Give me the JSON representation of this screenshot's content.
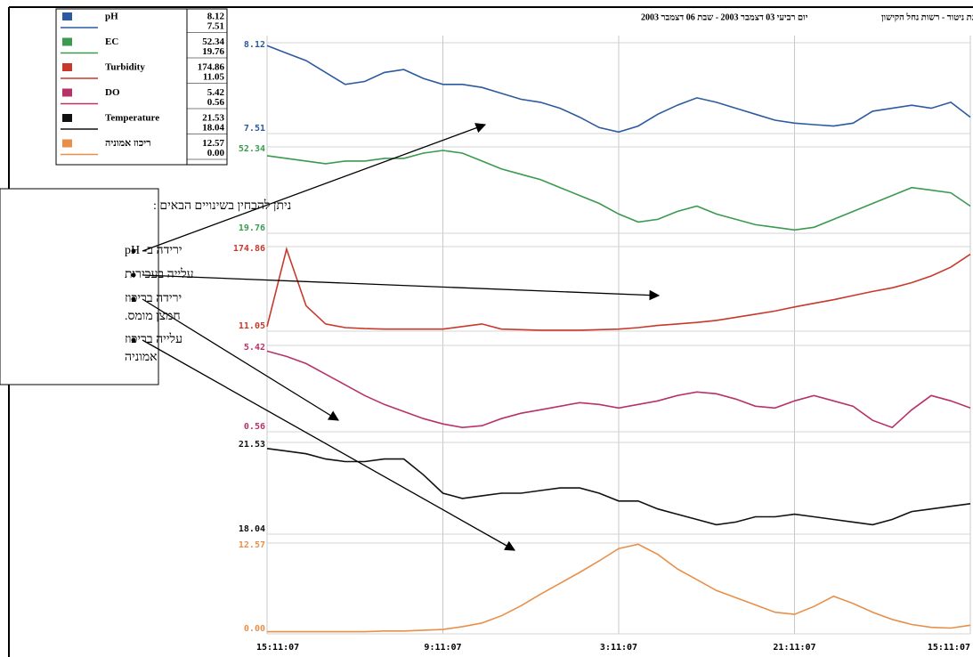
{
  "header": {
    "station": "- - תחנת ניטור - רשות נחל הקישון",
    "dates": "יום רביעי 03 דצמבר 2003 - שבת 06 דצמבר 2003"
  },
  "callout": {
    "heading": "ניתן להבחין בשינויים הבאים :",
    "items": [
      "ירידה ב- pH",
      "עלייה בעכירות",
      "ירידה בריכוז חמצן מומס.",
      "עלייה בריכוז אמוניה"
    ]
  },
  "chart_data": [
    {
      "type": "line",
      "xlim": [
        0,
        72
      ],
      "ylim": [
        7.51,
        8.12
      ],
      "yticks": [
        7.51,
        8.12
      ],
      "x": [
        0,
        2,
        4,
        6,
        8,
        10,
        12,
        14,
        16,
        18,
        20,
        22,
        24,
        26,
        28,
        30,
        32,
        34,
        36,
        38,
        40,
        42,
        44,
        46,
        48,
        50,
        52,
        54,
        56,
        58,
        60,
        62,
        64,
        66,
        68,
        70,
        72
      ],
      "series": [
        {
          "name": "pH",
          "color": "#2c5aa0",
          "values": [
            8.1,
            8.05,
            8.0,
            7.92,
            7.84,
            7.86,
            7.92,
            7.94,
            7.88,
            7.84,
            7.84,
            7.82,
            7.78,
            7.74,
            7.72,
            7.68,
            7.62,
            7.55,
            7.52,
            7.56,
            7.64,
            7.7,
            7.75,
            7.72,
            7.68,
            7.64,
            7.6,
            7.58,
            7.57,
            7.56,
            7.58,
            7.66,
            7.68,
            7.7,
            7.68,
            7.72,
            7.62
          ]
        }
      ]
    },
    {
      "type": "line",
      "xlim": [
        0,
        72
      ],
      "ylim": [
        19.76,
        52.34
      ],
      "yticks": [
        19.76,
        52.34
      ],
      "x": [
        0,
        2,
        4,
        6,
        8,
        10,
        12,
        14,
        16,
        18,
        20,
        22,
        24,
        26,
        28,
        30,
        32,
        34,
        36,
        38,
        40,
        42,
        44,
        46,
        48,
        50,
        52,
        54,
        56,
        58,
        60,
        62,
        64,
        66,
        68,
        70,
        72
      ],
      "series": [
        {
          "name": "EC",
          "color": "#3a9a4f",
          "values": [
            49,
            48,
            47,
            46,
            47,
            47,
            48,
            48,
            50,
            51,
            50,
            47,
            44,
            42,
            40,
            37,
            34,
            31,
            27,
            24,
            25,
            28,
            30,
            27,
            25,
            23,
            22,
            21,
            22,
            25,
            28,
            31,
            34,
            37,
            36,
            35,
            30
          ]
        }
      ]
    },
    {
      "type": "line",
      "xlim": [
        0,
        72
      ],
      "ylim": [
        11.05,
        174.86
      ],
      "yticks": [
        11.05,
        174.86
      ],
      "x": [
        0,
        2,
        4,
        6,
        8,
        10,
        12,
        14,
        16,
        18,
        20,
        22,
        24,
        26,
        28,
        30,
        32,
        34,
        36,
        38,
        40,
        42,
        44,
        46,
        48,
        50,
        52,
        54,
        56,
        58,
        60,
        62,
        64,
        66,
        68,
        70,
        72
      ],
      "series": [
        {
          "name": "Turbidity",
          "color": "#c8392b",
          "values": [
            20,
            170,
            60,
            25,
            18,
            16,
            15,
            15,
            15,
            15,
            20,
            25,
            15,
            14,
            13,
            13,
            13,
            14,
            15,
            18,
            22,
            25,
            28,
            32,
            38,
            44,
            50,
            58,
            65,
            72,
            80,
            88,
            95,
            105,
            118,
            135,
            160
          ]
        }
      ]
    },
    {
      "type": "line",
      "xlim": [
        0,
        72
      ],
      "ylim": [
        0.56,
        5.42
      ],
      "yticks": [
        0.56,
        5.42
      ],
      "x": [
        0,
        2,
        4,
        6,
        8,
        10,
        12,
        14,
        16,
        18,
        20,
        22,
        24,
        26,
        28,
        30,
        32,
        34,
        36,
        38,
        40,
        42,
        44,
        46,
        48,
        50,
        52,
        54,
        56,
        58,
        60,
        62,
        64,
        66,
        68,
        70,
        72
      ],
      "series": [
        {
          "name": "DO",
          "color": "#b8326a",
          "values": [
            5.1,
            4.8,
            4.4,
            3.8,
            3.2,
            2.6,
            2.1,
            1.7,
            1.3,
            1.0,
            0.8,
            0.9,
            1.3,
            1.6,
            1.8,
            2.0,
            2.2,
            2.1,
            1.9,
            2.1,
            2.3,
            2.6,
            2.8,
            2.7,
            2.4,
            2.0,
            1.9,
            2.3,
            2.6,
            2.3,
            2.0,
            1.2,
            0.8,
            1.8,
            2.6,
            2.3,
            1.9
          ]
        }
      ]
    },
    {
      "type": "line",
      "xlim": [
        0,
        72
      ],
      "ylim": [
        18.04,
        21.53
      ],
      "yticks": [
        18.04,
        21.53
      ],
      "x": [
        0,
        2,
        4,
        6,
        8,
        10,
        12,
        14,
        16,
        18,
        20,
        22,
        24,
        26,
        28,
        30,
        32,
        34,
        36,
        38,
        40,
        42,
        44,
        46,
        48,
        50,
        52,
        54,
        56,
        58,
        60,
        62,
        64,
        66,
        68,
        70,
        72
      ],
      "series": [
        {
          "name": "Temperature",
          "color": "#111111",
          "values": [
            21.3,
            21.2,
            21.1,
            20.9,
            20.8,
            20.8,
            20.9,
            20.9,
            20.3,
            19.6,
            19.4,
            19.5,
            19.6,
            19.6,
            19.7,
            19.8,
            19.8,
            19.6,
            19.3,
            19.3,
            19.0,
            18.8,
            18.6,
            18.4,
            18.5,
            18.7,
            18.7,
            18.8,
            18.7,
            18.6,
            18.5,
            18.4,
            18.6,
            18.9,
            19.0,
            19.1,
            19.2
          ]
        }
      ]
    },
    {
      "type": "line",
      "xlim": [
        0,
        72
      ],
      "ylim": [
        0,
        12.57
      ],
      "yticks": [
        {
          "value": 0,
          "label": "0.00"
        },
        12.57
      ],
      "x": [
        0,
        2,
        4,
        6,
        8,
        10,
        12,
        14,
        16,
        18,
        20,
        22,
        24,
        26,
        28,
        30,
        32,
        34,
        36,
        38,
        40,
        42,
        44,
        46,
        48,
        50,
        52,
        54,
        56,
        58,
        60,
        62,
        64,
        66,
        68,
        70,
        72
      ],
      "xticks": [
        {
          "value": 0,
          "label": "15:11:07"
        },
        {
          "value": 18,
          "label": "9:11:07"
        },
        {
          "value": 36,
          "label": "3:11:07"
        },
        {
          "value": 54,
          "label": "21:11:07"
        },
        {
          "value": 72,
          "label": "15:11:07"
        }
      ],
      "series": [
        {
          "name": "ריכוז אמוניה",
          "color": "#e8904a",
          "values": [
            0.3,
            0.3,
            0.3,
            0.3,
            0.3,
            0.3,
            0.4,
            0.4,
            0.5,
            0.6,
            1.0,
            1.5,
            2.5,
            3.9,
            5.5,
            7.0,
            8.5,
            10.1,
            11.8,
            12.4,
            11.0,
            9.0,
            7.5,
            6.0,
            5.0,
            4.0,
            3.0,
            2.7,
            3.8,
            5.2,
            4.2,
            3.0,
            2.0,
            1.3,
            0.9,
            0.8,
            1.2
          ]
        }
      ]
    }
  ]
}
